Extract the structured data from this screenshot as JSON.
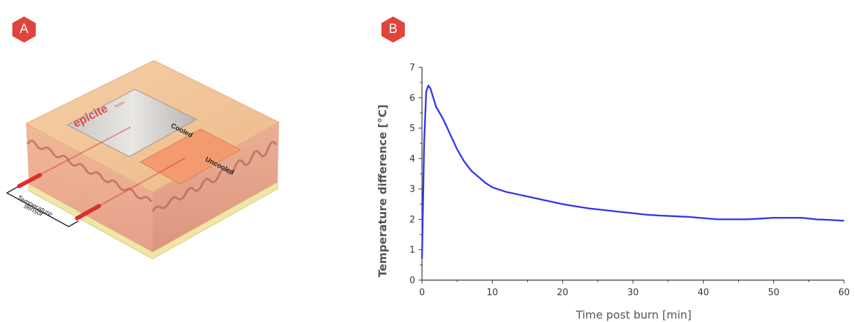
{
  "panels": {
    "a_label": "A",
    "b_label": "B"
  },
  "illustration": {
    "brand_text": "epicite",
    "brand_suffix": "hydro",
    "cooled_label": "Cooled",
    "uncooled_label": "Uncooled",
    "sensor_label_line1": "Temperature",
    "sensor_label_line2": "sensor"
  },
  "colors": {
    "badge": "#e0443a",
    "series": "#3333ee",
    "skin_top": "#f2c49a",
    "dermis": "#e8a98e",
    "sensor": "#d9302c",
    "uncooled_patch": "#f39a6e"
  },
  "chart_data": {
    "type": "line",
    "title": "",
    "xlabel": "Time post burn [min]",
    "ylabel": "Temperature difference [°C]",
    "xlim": [
      0,
      60
    ],
    "ylim": [
      0,
      7
    ],
    "xticks": [
      0,
      10,
      20,
      30,
      40,
      50,
      60
    ],
    "yticks": [
      0,
      1,
      2,
      3,
      4,
      5,
      6,
      7
    ],
    "grid": false,
    "series": [
      {
        "x": [
          0,
          0.3,
          0.6,
          0.9,
          1.2,
          1.6,
          2,
          2.5,
          3,
          4,
          5,
          6,
          7,
          8,
          9,
          10,
          12,
          14,
          16,
          18,
          20,
          22,
          24,
          26,
          28,
          30,
          32,
          34,
          36,
          38,
          40,
          42,
          44,
          46,
          48,
          50,
          52,
          54,
          56,
          58,
          60
        ],
        "y": [
          0.7,
          4.5,
          6.2,
          6.4,
          6.3,
          6.0,
          5.7,
          5.5,
          5.3,
          4.8,
          4.3,
          3.9,
          3.6,
          3.4,
          3.2,
          3.05,
          2.9,
          2.8,
          2.7,
          2.6,
          2.5,
          2.42,
          2.35,
          2.3,
          2.25,
          2.2,
          2.15,
          2.12,
          2.1,
          2.08,
          2.04,
          2.0,
          2.0,
          2.0,
          2.02,
          2.05,
          2.05,
          2.05,
          2.0,
          1.98,
          1.95
        ]
      }
    ]
  }
}
